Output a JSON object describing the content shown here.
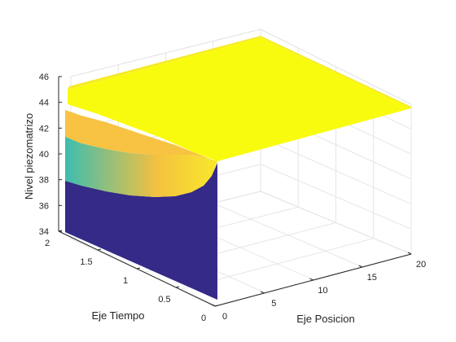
{
  "chart_data": {
    "type": "surface",
    "title": "",
    "xlabel": "Eje Posicion",
    "ylabel": "Eje Tiempo",
    "zlabel": "Nivel piezomatrizo",
    "xlim": [
      0,
      20
    ],
    "ylim": [
      0,
      2
    ],
    "zlim": [
      34,
      46
    ],
    "xticks": [
      "0",
      "5",
      "10",
      "15",
      "20"
    ],
    "yticks": [
      "0",
      "0.5",
      "1",
      "1.5",
      "2"
    ],
    "zticks": [
      "34",
      "36",
      "38",
      "40",
      "42",
      "44",
      "46"
    ],
    "grid": true,
    "colormap": "parula",
    "colors": {
      "low": "#352a87",
      "mid_low": "#0f5cdd",
      "mid": "#12b2b2",
      "mid_high": "#a5be6a",
      "orange": "#f8ba43",
      "high": "#f9fb0e"
    },
    "surface": {
      "initial_value_at_x0": 34,
      "boundary_value": 45,
      "z_at_x0_over_time": [
        {
          "t": 0,
          "z": 34
        },
        {
          "t": 0.25,
          "z": 39.0
        },
        {
          "t": 0.5,
          "z": 40.5
        },
        {
          "t": 1.0,
          "z": 42.2
        },
        {
          "t": 1.5,
          "z": 43.4
        },
        {
          "t": 2.0,
          "z": 45.0
        }
      ]
    }
  }
}
